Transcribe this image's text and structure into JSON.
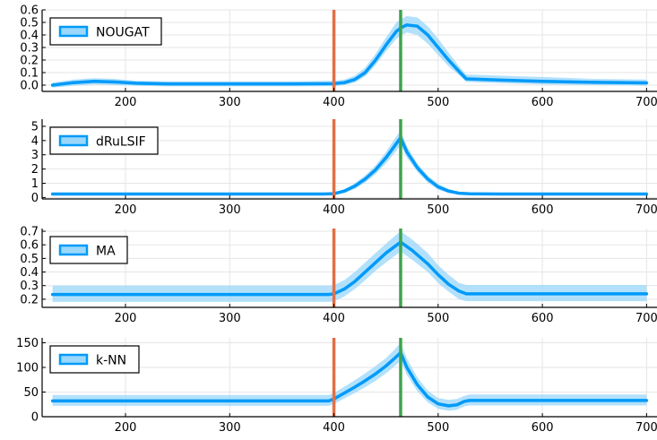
{
  "chart_data": [
    {
      "type": "line",
      "legend": "NOUGAT",
      "legend_position": "top-left",
      "grid": true,
      "xlim": [
        120,
        710
      ],
      "ylim": [
        -0.05,
        0.6
      ],
      "xticks": [
        200,
        300,
        400,
        500,
        600,
        700
      ],
      "yticks": [
        0.0,
        0.1,
        0.2,
        0.3,
        0.4,
        0.5,
        0.6
      ],
      "ytick_labels": [
        "0.0",
        "0.1",
        "0.2",
        "0.3",
        "0.4",
        "0.5",
        "0.6"
      ],
      "vlines": [
        {
          "x": 400,
          "color": "#e26f46"
        },
        {
          "x": 464,
          "color": "#3da44d"
        }
      ],
      "series_color": "#009af9",
      "band_color": "#9ad7fb",
      "x": [
        130,
        150,
        170,
        190,
        210,
        240,
        300,
        360,
        400,
        410,
        420,
        430,
        440,
        450,
        460,
        465,
        470,
        480,
        490,
        500,
        510,
        520,
        527,
        560,
        600,
        650,
        700
      ],
      "y": [
        0.0,
        0.02,
        0.03,
        0.025,
        0.015,
        0.01,
        0.01,
        0.01,
        0.012,
        0.02,
        0.045,
        0.1,
        0.2,
        0.32,
        0.43,
        0.46,
        0.48,
        0.47,
        0.4,
        0.3,
        0.2,
        0.11,
        0.05,
        0.04,
        0.03,
        0.022,
        0.018
      ],
      "band_low": [
        -0.02,
        -0.005,
        0.005,
        0.0,
        -0.005,
        -0.01,
        -0.01,
        -0.01,
        -0.008,
        0.0,
        0.02,
        0.07,
        0.16,
        0.27,
        0.37,
        0.4,
        0.42,
        0.4,
        0.33,
        0.24,
        0.15,
        0.08,
        0.025,
        0.015,
        0.005,
        0.0,
        -0.005
      ],
      "band_high": [
        0.02,
        0.045,
        0.055,
        0.05,
        0.035,
        0.03,
        0.03,
        0.03,
        0.035,
        0.045,
        0.075,
        0.14,
        0.25,
        0.38,
        0.5,
        0.53,
        0.55,
        0.54,
        0.47,
        0.37,
        0.26,
        0.15,
        0.085,
        0.075,
        0.065,
        0.05,
        0.045
      ]
    },
    {
      "type": "line",
      "legend": "dRuLSIF",
      "legend_position": "top-left",
      "grid": true,
      "xlim": [
        120,
        710
      ],
      "ylim": [
        -0.1,
        5.5
      ],
      "xticks": [
        200,
        300,
        400,
        500,
        600,
        700
      ],
      "yticks": [
        0,
        1,
        2,
        3,
        4,
        5
      ],
      "ytick_labels": [
        "0",
        "1",
        "2",
        "3",
        "4",
        "5"
      ],
      "vlines": [
        {
          "x": 400,
          "color": "#e26f46"
        },
        {
          "x": 464,
          "color": "#3da44d"
        }
      ],
      "series_color": "#009af9",
      "band_color": "#9ad7fb",
      "x": [
        130,
        200,
        300,
        390,
        400,
        410,
        420,
        430,
        440,
        450,
        458,
        464,
        470,
        480,
        490,
        500,
        510,
        520,
        530,
        560,
        600,
        650,
        700
      ],
      "y": [
        0.25,
        0.25,
        0.25,
        0.25,
        0.27,
        0.45,
        0.8,
        1.3,
        1.95,
        2.8,
        3.6,
        4.2,
        3.2,
        2.1,
        1.3,
        0.75,
        0.45,
        0.3,
        0.26,
        0.25,
        0.25,
        0.25,
        0.25
      ],
      "band_low": [
        0.18,
        0.18,
        0.18,
        0.18,
        0.2,
        0.33,
        0.6,
        1.05,
        1.65,
        2.4,
        3.1,
        3.7,
        2.8,
        1.8,
        1.05,
        0.55,
        0.32,
        0.22,
        0.19,
        0.18,
        0.18,
        0.18,
        0.18
      ],
      "band_high": [
        0.33,
        0.33,
        0.33,
        0.33,
        0.36,
        0.58,
        1.0,
        1.55,
        2.25,
        3.2,
        4.1,
        4.7,
        3.6,
        2.4,
        1.55,
        0.95,
        0.6,
        0.4,
        0.34,
        0.33,
        0.33,
        0.33,
        0.33
      ]
    },
    {
      "type": "line",
      "legend": "MA",
      "legend_position": "top-left",
      "grid": true,
      "xlim": [
        120,
        710
      ],
      "ylim": [
        0.14,
        0.72
      ],
      "xticks": [
        200,
        300,
        400,
        500,
        600,
        700
      ],
      "yticks": [
        0.2,
        0.3,
        0.4,
        0.5,
        0.6,
        0.7
      ],
      "ytick_labels": [
        "0.2",
        "0.3",
        "0.4",
        "0.5",
        "0.6",
        "0.7"
      ],
      "vlines": [
        {
          "x": 400,
          "color": "#e26f46"
        },
        {
          "x": 464,
          "color": "#3da44d"
        }
      ],
      "series_color": "#009af9",
      "band_color": "#9ad7fb",
      "x": [
        130,
        200,
        300,
        395,
        400,
        410,
        420,
        430,
        440,
        450,
        464,
        475,
        490,
        500,
        510,
        520,
        527,
        560,
        600,
        650,
        700
      ],
      "y": [
        0.235,
        0.235,
        0.235,
        0.235,
        0.24,
        0.275,
        0.33,
        0.4,
        0.47,
        0.54,
        0.62,
        0.56,
        0.46,
        0.38,
        0.31,
        0.26,
        0.24,
        0.24,
        0.24,
        0.24,
        0.24
      ],
      "band_low": [
        0.18,
        0.18,
        0.18,
        0.18,
        0.185,
        0.22,
        0.275,
        0.34,
        0.41,
        0.47,
        0.55,
        0.49,
        0.4,
        0.32,
        0.255,
        0.2,
        0.185,
        0.185,
        0.185,
        0.185,
        0.185
      ],
      "band_high": [
        0.3,
        0.3,
        0.3,
        0.3,
        0.305,
        0.34,
        0.4,
        0.47,
        0.54,
        0.61,
        0.7,
        0.64,
        0.54,
        0.45,
        0.38,
        0.32,
        0.305,
        0.305,
        0.305,
        0.305,
        0.305
      ]
    },
    {
      "type": "line",
      "legend": "k-NN",
      "legend_position": "top-left",
      "grid": true,
      "xlim": [
        120,
        710
      ],
      "ylim": [
        0,
        160
      ],
      "xticks": [
        200,
        300,
        400,
        500,
        600,
        700
      ],
      "yticks": [
        0,
        50,
        100,
        150
      ],
      "ytick_labels": [
        "0",
        "50",
        "100",
        "150"
      ],
      "vlines": [
        {
          "x": 400,
          "color": "#e26f46"
        },
        {
          "x": 464,
          "color": "#3da44d"
        }
      ],
      "series_color": "#009af9",
      "band_color": "#9ad7fb",
      "x": [
        130,
        200,
        300,
        395,
        400,
        410,
        420,
        430,
        440,
        450,
        458,
        464,
        470,
        480,
        490,
        500,
        510,
        518,
        525,
        530,
        560,
        600,
        650,
        700
      ],
      "y": [
        32,
        32,
        32,
        32,
        36,
        48,
        60,
        73,
        87,
        103,
        118,
        130,
        100,
        65,
        40,
        26,
        22,
        24,
        31,
        33,
        33,
        33,
        33,
        33
      ],
      "band_low": [
        22,
        22,
        22,
        22,
        26,
        37,
        48,
        60,
        73,
        88,
        102,
        113,
        85,
        52,
        29,
        16,
        12,
        14,
        21,
        23,
        23,
        23,
        23,
        23
      ],
      "band_high": [
        44,
        44,
        44,
        44,
        48,
        61,
        74,
        88,
        103,
        119,
        136,
        150,
        118,
        80,
        53,
        38,
        34,
        36,
        42,
        45,
        45,
        45,
        45,
        45
      ]
    }
  ]
}
